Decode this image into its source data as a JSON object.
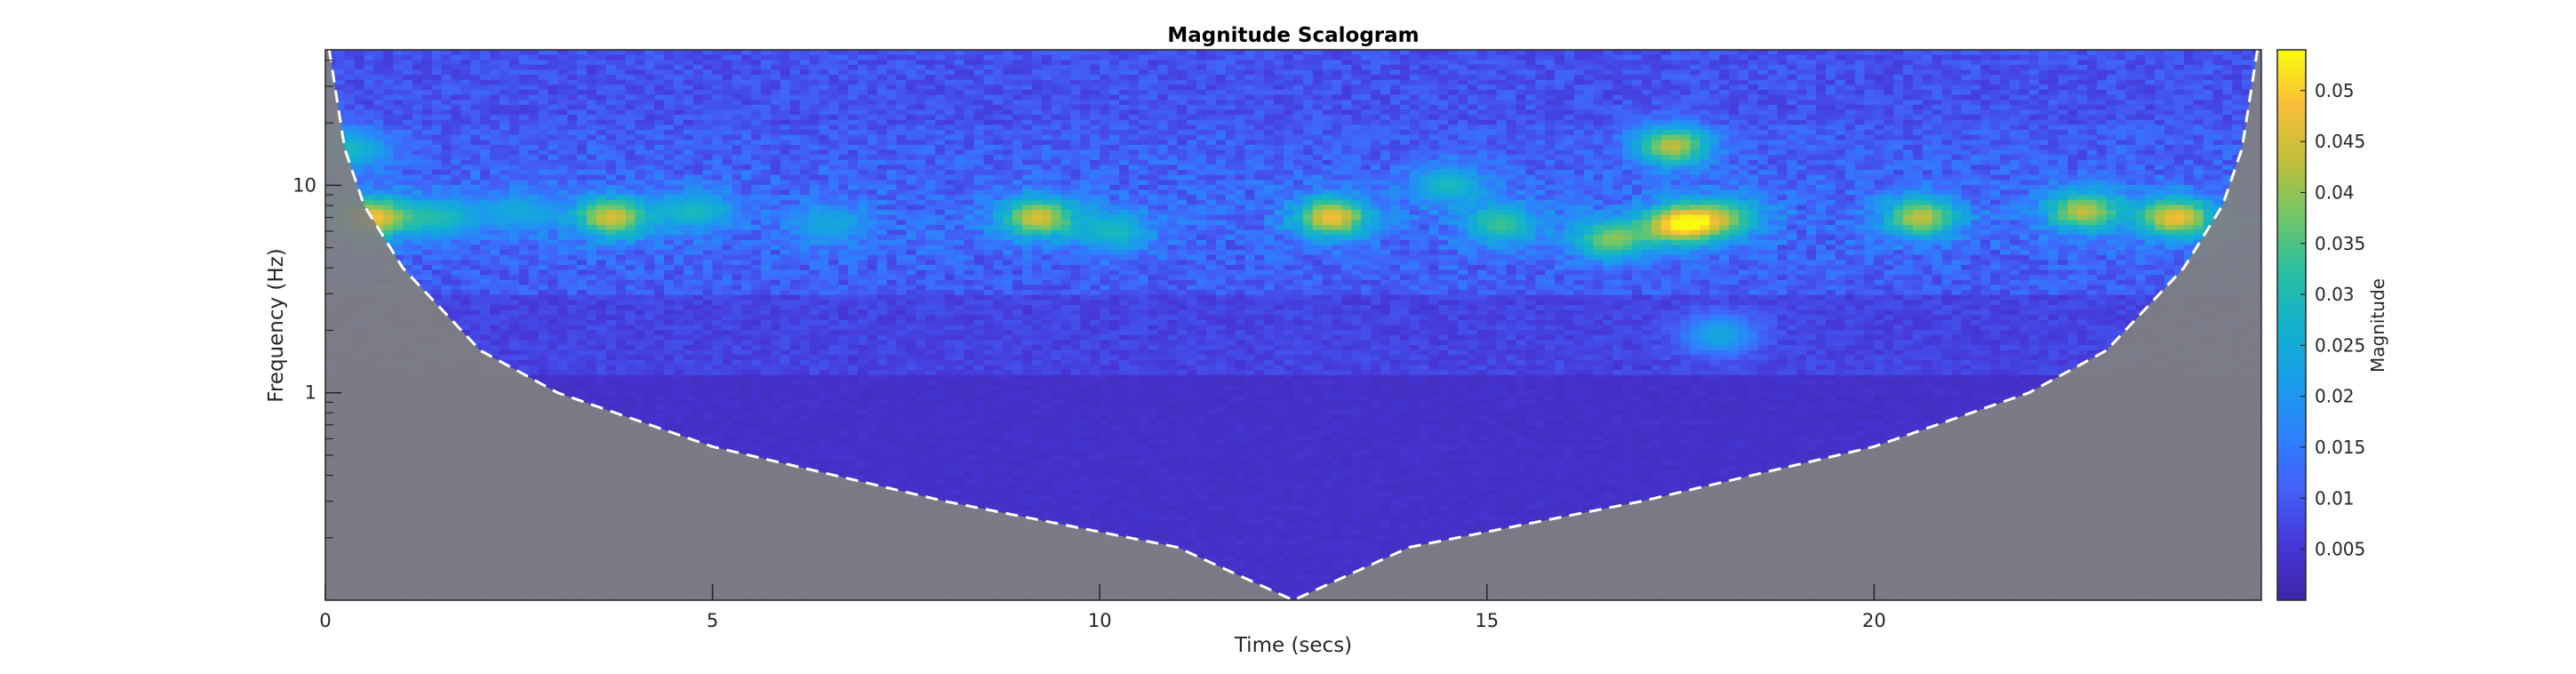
{
  "chart_data": {
    "type": "heatmap",
    "title": "Magnitude Scalogram",
    "xlabel": "Time (secs)",
    "ylabel": "Frequency (Hz)",
    "xlim": [
      0,
      25
    ],
    "ylim_hz": [
      0.1,
      45
    ],
    "yscale": "log",
    "x_ticks": [
      0,
      5,
      10,
      15,
      20
    ],
    "x_tick_labels": [
      "0",
      "5",
      "10",
      "15",
      "20"
    ],
    "y_ticks": [
      1,
      10
    ],
    "y_tick_labels": [
      "1",
      "10"
    ],
    "colorbar": {
      "label": "Magnitude",
      "range": [
        0,
        0.054
      ],
      "ticks": [
        0.005,
        0.01,
        0.015,
        0.02,
        0.025,
        0.03,
        0.035,
        0.04,
        0.045,
        0.05
      ],
      "tick_labels": [
        "0.005",
        "0.01",
        "0.015",
        "0.02",
        "0.025",
        "0.03",
        "0.035",
        "0.04",
        "0.045",
        "0.05"
      ],
      "colormap": "parula"
    },
    "cone_of_influence": {
      "style": "white dashed",
      "shaded_region_color": "#808080",
      "points": [
        [
          0.05,
          45
        ],
        [
          0.25,
          15
        ],
        [
          0.5,
          8
        ],
        [
          1,
          4
        ],
        [
          2,
          1.6
        ],
        [
          3,
          1.0
        ],
        [
          5,
          0.55
        ],
        [
          8,
          0.3
        ],
        [
          11,
          0.18
        ],
        [
          12.5,
          0.1
        ],
        [
          14,
          0.18
        ],
        [
          17,
          0.3
        ],
        [
          20,
          0.55
        ],
        [
          22,
          1.0
        ],
        [
          23,
          1.6
        ],
        [
          24,
          4
        ],
        [
          24.5,
          8
        ],
        [
          24.75,
          15
        ],
        [
          24.95,
          45
        ]
      ]
    },
    "hotspots": [
      {
        "t": 0.6,
        "f": 7.0,
        "magnitude": 0.05
      },
      {
        "t": 0.3,
        "f": 15.0,
        "magnitude": 0.03
      },
      {
        "t": 1.5,
        "f": 7.0,
        "magnitude": 0.03
      },
      {
        "t": 2.5,
        "f": 7.5,
        "magnitude": 0.025
      },
      {
        "t": 3.7,
        "f": 7.0,
        "magnitude": 0.047
      },
      {
        "t": 4.8,
        "f": 7.5,
        "magnitude": 0.03
      },
      {
        "t": 6.5,
        "f": 6.5,
        "magnitude": 0.025
      },
      {
        "t": 9.2,
        "f": 7.0,
        "magnitude": 0.047
      },
      {
        "t": 10.2,
        "f": 6.0,
        "magnitude": 0.03
      },
      {
        "t": 13.0,
        "f": 7.0,
        "magnitude": 0.05
      },
      {
        "t": 14.5,
        "f": 10.0,
        "magnitude": 0.03
      },
      {
        "t": 15.2,
        "f": 6.5,
        "magnitude": 0.035
      },
      {
        "t": 16.6,
        "f": 5.5,
        "magnitude": 0.04
      },
      {
        "t": 17.5,
        "f": 6.5,
        "magnitude": 0.054
      },
      {
        "t": 17.4,
        "f": 15.5,
        "magnitude": 0.045
      },
      {
        "t": 18.1,
        "f": 7.0,
        "magnitude": 0.035
      },
      {
        "t": 18.0,
        "f": 1.9,
        "magnitude": 0.025
      },
      {
        "t": 20.6,
        "f": 7.0,
        "magnitude": 0.045
      },
      {
        "t": 22.7,
        "f": 7.5,
        "magnitude": 0.045
      },
      {
        "t": 23.9,
        "f": 7.0,
        "magnitude": 0.05
      }
    ]
  }
}
